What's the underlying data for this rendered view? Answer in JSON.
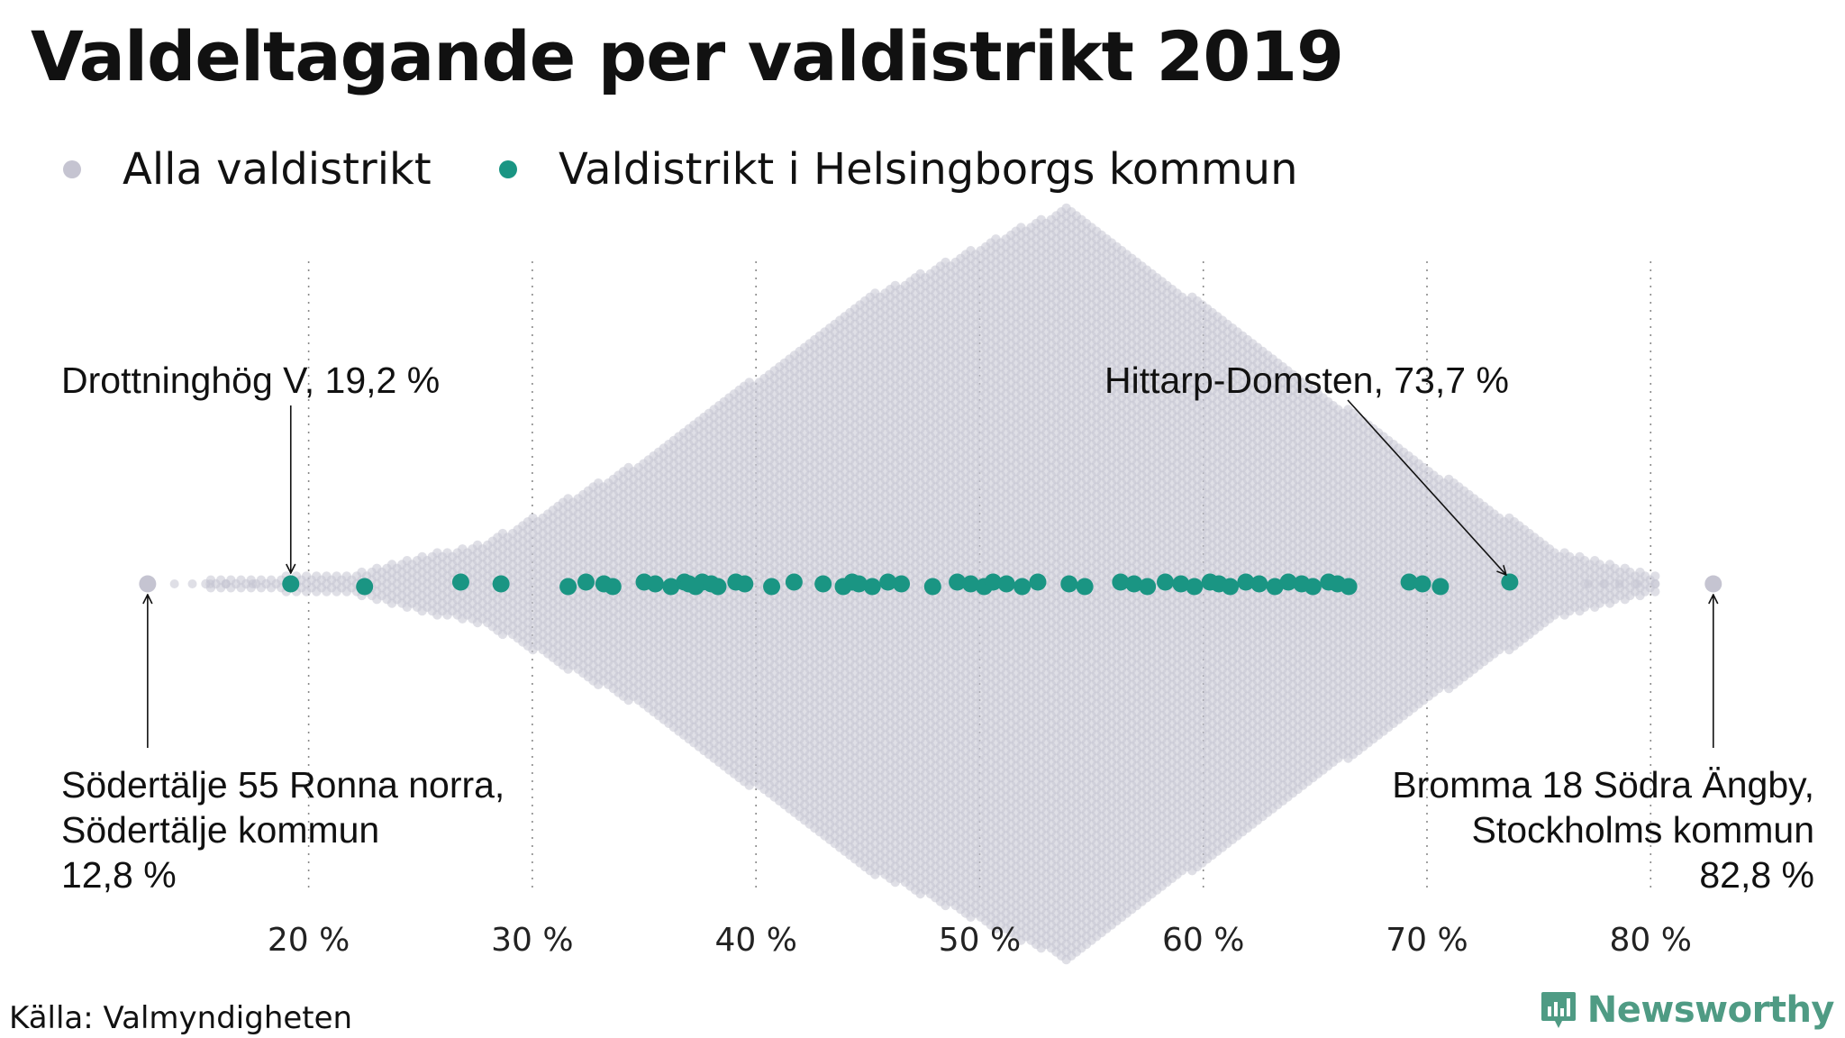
{
  "title": "Valdeltagande per valdistrikt 2019",
  "legend": [
    {
      "label": "Alla valdistrikt",
      "color": "#c5c4d1"
    },
    {
      "label": "Valdistrikt i Helsingborgs kommun",
      "color": "#1a9583"
    }
  ],
  "source": "Källa: Valmyndigheten",
  "brand": {
    "name": "Newsworthy",
    "color": "#4f9b84"
  },
  "chart_data": {
    "type": "scatter",
    "subtype": "beeswarm",
    "title": "Valdeltagande per valdistrikt 2019",
    "xlabel": "",
    "ylabel": "",
    "xlim": [
      12.0,
      84.5
    ],
    "x_ticks": [
      20,
      30,
      40,
      50,
      60,
      70,
      80
    ],
    "x_tick_labels": [
      "20 %",
      "30 %",
      "40 %",
      "50 %",
      "60 %",
      "70 %",
      "80 %"
    ],
    "grid": "vertical dotted",
    "series": [
      {
        "name": "Alla valdistrikt",
        "color": "#c5c4d1",
        "x_extremes": [
          12.8,
          82.8
        ],
        "peak": 54.0,
        "note_approx": "several thousand districts, dense swarm"
      },
      {
        "name": "Valdistrikt i Helsingborgs kommun",
        "color": "#1a9583",
        "x": [
          19.2,
          22.5,
          26.8,
          28.6,
          31.6,
          32.4,
          33.2,
          33.6,
          35.0,
          35.5,
          36.2,
          36.8,
          37.0,
          37.3,
          37.6,
          38.0,
          38.3,
          39.1,
          39.5,
          40.7,
          41.7,
          43.0,
          43.9,
          44.3,
          44.6,
          45.2,
          45.9,
          46.5,
          47.9,
          49.0,
          49.6,
          50.2,
          50.6,
          51.2,
          51.9,
          52.6,
          54.0,
          54.7,
          56.3,
          56.9,
          57.5,
          58.3,
          59.0,
          59.6,
          60.3,
          60.7,
          61.2,
          61.9,
          62.5,
          63.2,
          63.8,
          64.4,
          64.9,
          65.6,
          66.0,
          66.5,
          69.2,
          69.8,
          70.6,
          73.7
        ]
      }
    ],
    "annotations": [
      {
        "lines": [
          "Drottninghög V, 19,2 %"
        ],
        "x": 19.2
      },
      {
        "lines": [
          "Hittarp-Domsten, 73,7 %"
        ],
        "x": 73.7
      },
      {
        "lines": [
          "Södertälje 55 Ronna norra,",
          "Södertälje kommun",
          "12,8 %"
        ],
        "x": 12.8
      },
      {
        "lines": [
          "Bromma 18 Södra Ängby,",
          "Stockholms kommun",
          "82,8 %"
        ],
        "x": 82.8
      }
    ]
  }
}
